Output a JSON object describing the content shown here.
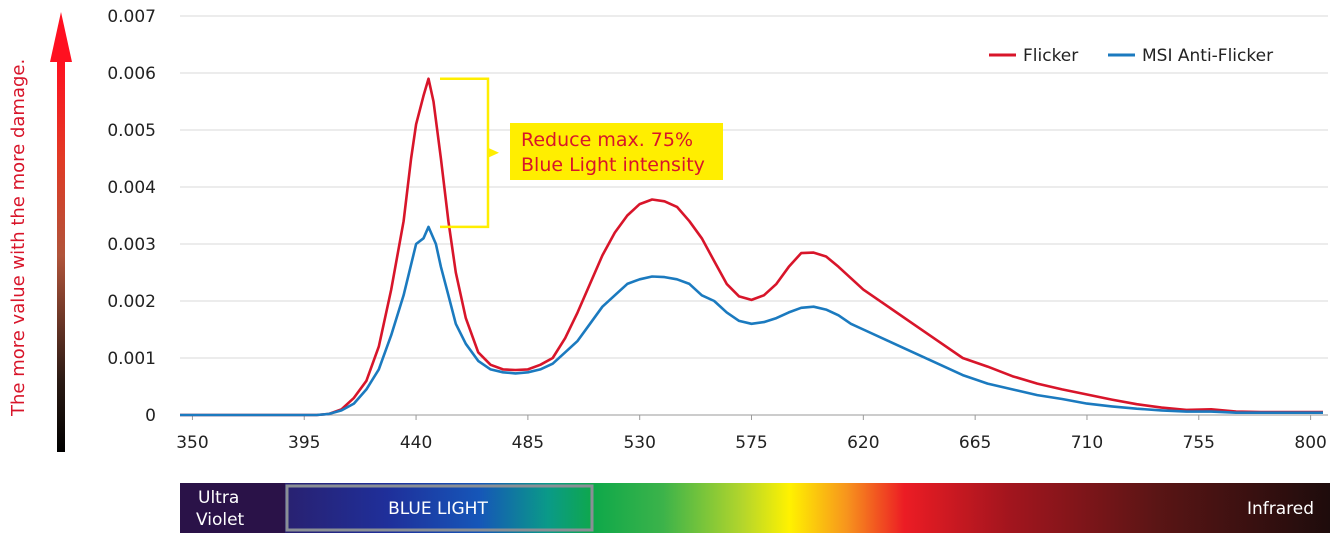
{
  "y_axis_side_label": "The more value with the more damage.",
  "callout": {
    "line1": "Reduce  max. 75%",
    "line2": "Blue Light intensity",
    "background": "#ffee00",
    "text_color": "#d8152a"
  },
  "spectrum_band": {
    "ultraviolet_line1": "Ultra",
    "ultraviolet_line2": "Violet",
    "blue_light": "BLUE LIGHT",
    "infrared": "Infrared"
  },
  "chart_data": {
    "type": "line",
    "title": "",
    "xlabel": "",
    "ylabel": "",
    "xlim": [
      345,
      807
    ],
    "ylim": [
      0,
      0.007
    ],
    "x_ticks": [
      "350",
      "395",
      "440",
      "485",
      "530",
      "575",
      "620",
      "665",
      "710",
      "755",
      "800"
    ],
    "y_ticks": [
      "0",
      "0.001",
      "0.002",
      "0.003",
      "0.004",
      "0.005",
      "0.006",
      "0.007"
    ],
    "grid": "horizontal",
    "legend_position": "top-right",
    "series": [
      {
        "name": "Flicker",
        "color": "#d8152a",
        "points": [
          [
            345,
            0
          ],
          [
            400,
            0
          ],
          [
            405,
            2e-05
          ],
          [
            410,
            0.0001
          ],
          [
            415,
            0.0003
          ],
          [
            420,
            0.0006
          ],
          [
            425,
            0.0012
          ],
          [
            430,
            0.0022
          ],
          [
            435,
            0.0034
          ],
          [
            438,
            0.0045
          ],
          [
            440,
            0.0051
          ],
          [
            443,
            0.0056
          ],
          [
            445,
            0.0059
          ],
          [
            447,
            0.0055
          ],
          [
            450,
            0.0045
          ],
          [
            453,
            0.0034
          ],
          [
            456,
            0.0025
          ],
          [
            460,
            0.0017
          ],
          [
            465,
            0.0011
          ],
          [
            470,
            0.00088
          ],
          [
            475,
            0.0008
          ],
          [
            480,
            0.00079
          ],
          [
            485,
            0.0008
          ],
          [
            490,
            0.00088
          ],
          [
            495,
            0.001
          ],
          [
            500,
            0.00135
          ],
          [
            505,
            0.0018
          ],
          [
            510,
            0.0023
          ],
          [
            515,
            0.0028
          ],
          [
            520,
            0.0032
          ],
          [
            525,
            0.0035
          ],
          [
            530,
            0.0037
          ],
          [
            535,
            0.00378
          ],
          [
            540,
            0.00375
          ],
          [
            545,
            0.00365
          ],
          [
            550,
            0.0034
          ],
          [
            555,
            0.0031
          ],
          [
            560,
            0.0027
          ],
          [
            565,
            0.0023
          ],
          [
            570,
            0.00208
          ],
          [
            575,
            0.00202
          ],
          [
            580,
            0.0021
          ],
          [
            585,
            0.0023
          ],
          [
            590,
            0.0026
          ],
          [
            595,
            0.00284
          ],
          [
            600,
            0.00285
          ],
          [
            605,
            0.00278
          ],
          [
            610,
            0.0026
          ],
          [
            615,
            0.0024
          ],
          [
            620,
            0.0022
          ],
          [
            630,
            0.0019
          ],
          [
            640,
            0.0016
          ],
          [
            650,
            0.0013
          ],
          [
            660,
            0.001
          ],
          [
            670,
            0.00085
          ],
          [
            680,
            0.00068
          ],
          [
            690,
            0.00055
          ],
          [
            700,
            0.00045
          ],
          [
            710,
            0.00036
          ],
          [
            720,
            0.00027
          ],
          [
            730,
            0.00019
          ],
          [
            740,
            0.00013
          ],
          [
            750,
            9e-05
          ],
          [
            760,
            0.0001
          ],
          [
            770,
            6e-05
          ],
          [
            780,
            5e-05
          ],
          [
            800,
            5e-05
          ],
          [
            805,
            5e-05
          ]
        ]
      },
      {
        "name": "MSI Anti-Flicker",
        "color": "#1b7abf",
        "points": [
          [
            345,
            0
          ],
          [
            400,
            0
          ],
          [
            405,
            2e-05
          ],
          [
            410,
            8e-05
          ],
          [
            415,
            0.0002
          ],
          [
            420,
            0.00045
          ],
          [
            425,
            0.0008
          ],
          [
            430,
            0.0014
          ],
          [
            435,
            0.0021
          ],
          [
            440,
            0.003
          ],
          [
            443,
            0.0031
          ],
          [
            445,
            0.0033
          ],
          [
            448,
            0.003
          ],
          [
            450,
            0.0026
          ],
          [
            453,
            0.0021
          ],
          [
            456,
            0.0016
          ],
          [
            460,
            0.00125
          ],
          [
            465,
            0.00095
          ],
          [
            470,
            0.0008
          ],
          [
            475,
            0.00075
          ],
          [
            480,
            0.00073
          ],
          [
            485,
            0.00075
          ],
          [
            490,
            0.0008
          ],
          [
            495,
            0.0009
          ],
          [
            500,
            0.0011
          ],
          [
            505,
            0.0013
          ],
          [
            510,
            0.0016
          ],
          [
            515,
            0.0019
          ],
          [
            520,
            0.0021
          ],
          [
            525,
            0.0023
          ],
          [
            530,
            0.00238
          ],
          [
            535,
            0.00243
          ],
          [
            540,
            0.00242
          ],
          [
            545,
            0.00238
          ],
          [
            550,
            0.0023
          ],
          [
            555,
            0.0021
          ],
          [
            560,
            0.002
          ],
          [
            565,
            0.0018
          ],
          [
            570,
            0.00165
          ],
          [
            575,
            0.0016
          ],
          [
            580,
            0.00163
          ],
          [
            585,
            0.0017
          ],
          [
            590,
            0.0018
          ],
          [
            595,
            0.00188
          ],
          [
            600,
            0.0019
          ],
          [
            605,
            0.00185
          ],
          [
            610,
            0.00175
          ],
          [
            615,
            0.0016
          ],
          [
            620,
            0.0015
          ],
          [
            630,
            0.0013
          ],
          [
            640,
            0.0011
          ],
          [
            650,
            0.0009
          ],
          [
            660,
            0.0007
          ],
          [
            670,
            0.00055
          ],
          [
            680,
            0.00045
          ],
          [
            690,
            0.00035
          ],
          [
            700,
            0.00028
          ],
          [
            710,
            0.0002
          ],
          [
            720,
            0.00015
          ],
          [
            730,
            0.00011
          ],
          [
            740,
            8e-05
          ],
          [
            750,
            6e-05
          ],
          [
            760,
            6e-05
          ],
          [
            770,
            4e-05
          ],
          [
            780,
            4e-05
          ],
          [
            800,
            4e-05
          ],
          [
            805,
            4e-05
          ]
        ]
      }
    ]
  }
}
